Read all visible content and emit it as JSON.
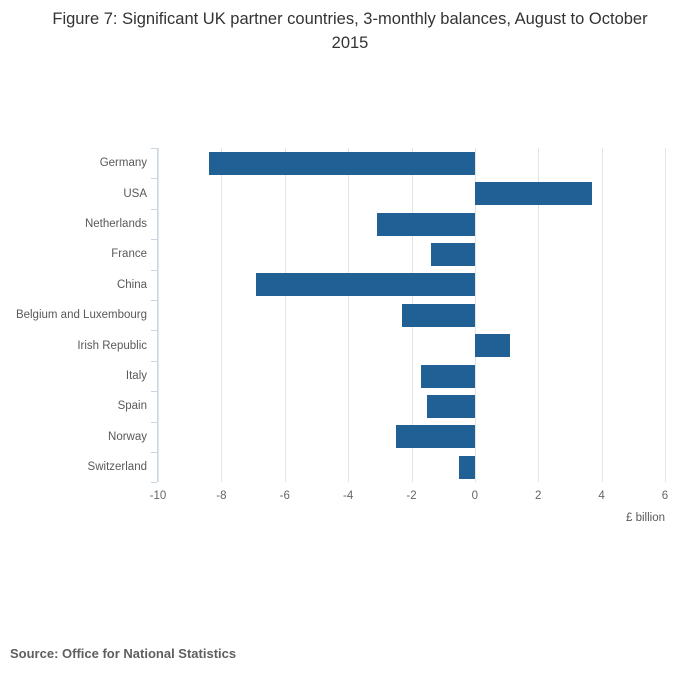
{
  "chart_data": {
    "type": "bar",
    "orientation": "horizontal",
    "title": "Figure 7: Significant UK partner countries, 3-monthly balances, August to October 2015",
    "categories": [
      "Germany",
      "USA",
      "Netherlands",
      "France",
      "China",
      "Belgium and Luxembourg",
      "Irish Republic",
      "Italy",
      "Spain",
      "Norway",
      "Switzerland"
    ],
    "values": [
      -8.4,
      3.7,
      -3.1,
      -1.4,
      -6.9,
      -2.3,
      1.1,
      -1.7,
      -1.5,
      -2.5,
      -0.5
    ],
    "xlabel": "£ billion",
    "ylabel": "",
    "xlim": [
      -10,
      6
    ],
    "xticks": [
      -10,
      -8,
      -6,
      -4,
      -2,
      0,
      2,
      4,
      6
    ],
    "grid": true,
    "legend": false,
    "bar_color": "#206095",
    "grid_color": "#e4e4e4",
    "axis_color": "#c9d6e3",
    "tick_label_color": "#666666",
    "category_label_color": "#595959",
    "title_color": "#333333"
  },
  "footer": {
    "source": "Source: Office for National Statistics"
  }
}
